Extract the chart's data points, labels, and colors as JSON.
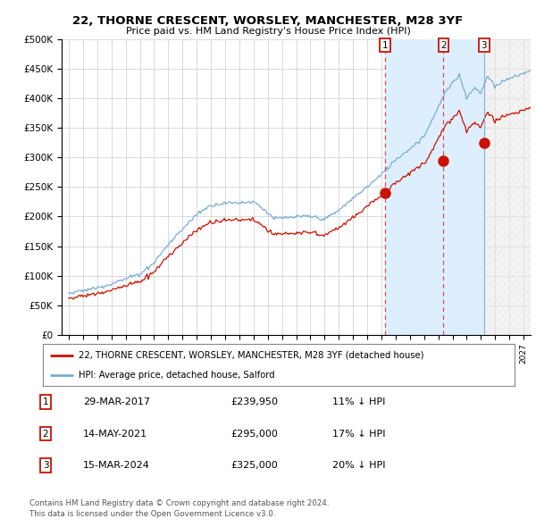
{
  "title": "22, THORNE CRESCENT, WORSLEY, MANCHESTER, M28 3YF",
  "subtitle": "Price paid vs. HM Land Registry's House Price Index (HPI)",
  "ylabel_ticks": [
    "£0",
    "£50K",
    "£100K",
    "£150K",
    "£200K",
    "£250K",
    "£300K",
    "£350K",
    "£400K",
    "£450K",
    "£500K"
  ],
  "ytick_values": [
    0,
    50000,
    100000,
    150000,
    200000,
    250000,
    300000,
    350000,
    400000,
    450000,
    500000
  ],
  "ylim": [
    0,
    500000
  ],
  "xlim_start": 1994.5,
  "xlim_end": 2027.5,
  "hpi_color": "#7aadd4",
  "price_color": "#cc1100",
  "vline_dashed_color": "#dd3333",
  "vline_solid_color": "#7aadd4",
  "shade_color": "#ddeeff",
  "hatch_color": "#aaaaaa",
  "sale_points": [
    {
      "year": 2017.24,
      "price": 239950,
      "label": "1",
      "vline": "dashed"
    },
    {
      "year": 2021.37,
      "price": 295000,
      "label": "2",
      "vline": "dashed"
    },
    {
      "year": 2024.21,
      "price": 325000,
      "label": "3",
      "vline": "solid"
    }
  ],
  "sale_table": [
    {
      "num": "1",
      "date": "29-MAR-2017",
      "price": "£239,950",
      "pct": "11% ↓ HPI"
    },
    {
      "num": "2",
      "date": "14-MAY-2021",
      "price": "£295,000",
      "pct": "17% ↓ HPI"
    },
    {
      "num": "3",
      "date": "15-MAR-2024",
      "price": "£325,000",
      "pct": "20% ↓ HPI"
    }
  ],
  "legend_line1": "22, THORNE CRESCENT, WORSLEY, MANCHESTER, M28 3YF (detached house)",
  "legend_line2": "HPI: Average price, detached house, Salford",
  "footer1": "Contains HM Land Registry data © Crown copyright and database right 2024.",
  "footer2": "This data is licensed under the Open Government Licence v3.0.",
  "bg_color": "#ffffff",
  "grid_color": "#cccccc"
}
